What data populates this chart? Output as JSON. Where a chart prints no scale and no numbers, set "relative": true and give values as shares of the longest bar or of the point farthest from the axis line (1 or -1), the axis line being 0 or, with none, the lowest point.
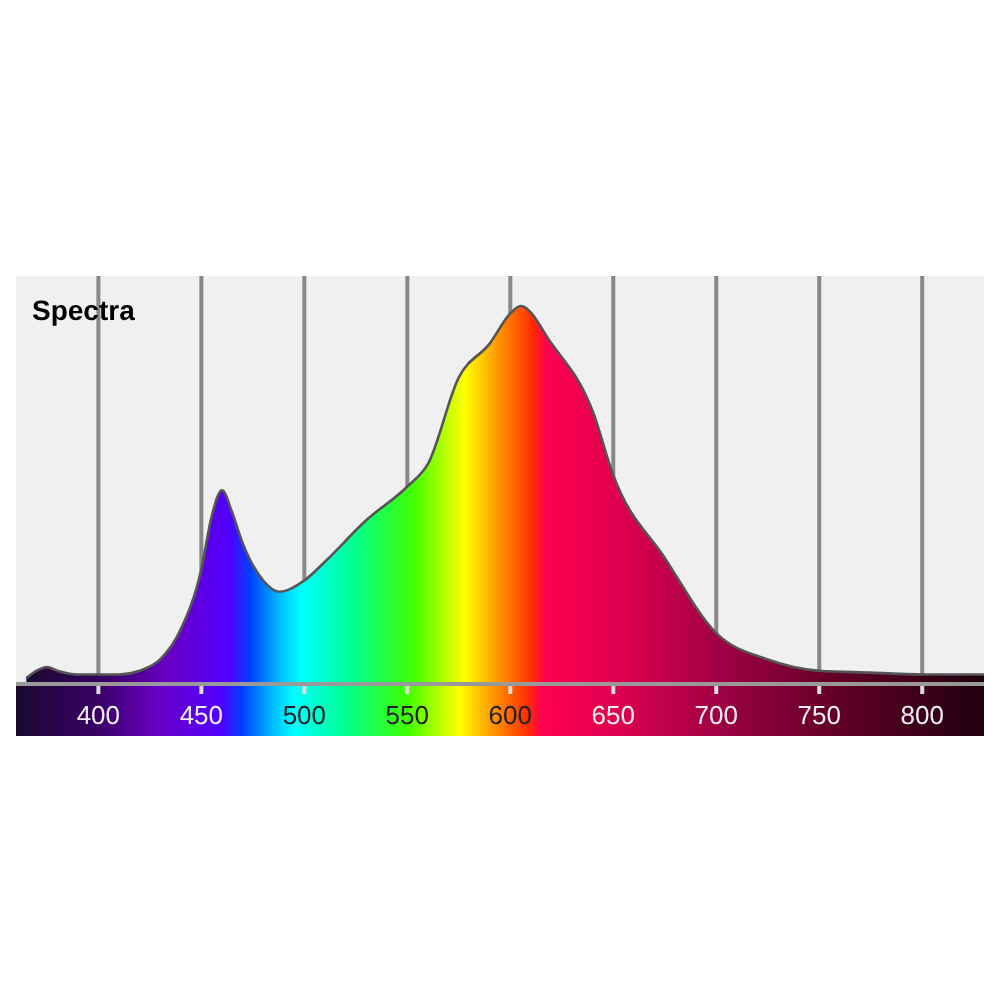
{
  "chart_data": {
    "type": "area",
    "title": "Spectra",
    "relative": true,
    "grid": "x",
    "xlim": [
      360,
      830
    ],
    "xticks": [
      400,
      450,
      500,
      550,
      600,
      650,
      700,
      750,
      800
    ],
    "series": [
      {
        "color": "#555555",
        "x": [
          365,
          370,
          375,
          380,
          390,
          400,
          410,
          420,
          430,
          440,
          450,
          455,
          460,
          465,
          470,
          480,
          488,
          500,
          510,
          530,
          550,
          560,
          575,
          590,
          600,
          605,
          620,
          640,
          650,
          675,
          700,
          725,
          750,
          775,
          800,
          825,
          830
        ],
        "values": [
          0.01,
          0.03,
          0.04,
          0.03,
          0.02,
          0.02,
          0.02,
          0.03,
          0.06,
          0.14,
          0.3,
          0.44,
          0.51,
          0.45,
          0.37,
          0.27,
          0.24,
          0.27,
          0.32,
          0.43,
          0.52,
          0.58,
          0.81,
          0.9,
          0.98,
          1,
          0.9,
          0.72,
          0.55,
          0.33,
          0.13,
          0.06,
          0.03,
          0.025,
          0.02,
          0.02,
          0.02
        ]
      }
    ]
  }
}
